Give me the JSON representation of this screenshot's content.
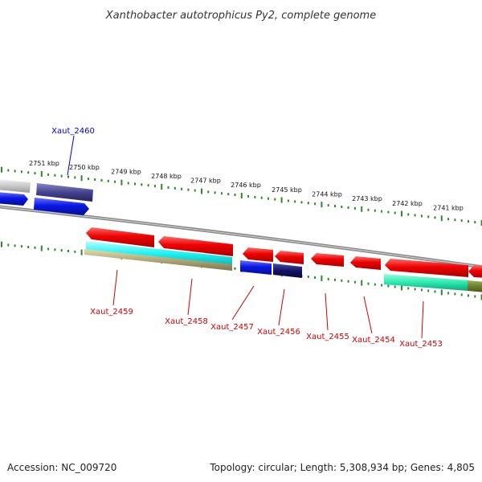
{
  "title": "Xanthobacter autotrophicus Py2, complete genome",
  "footer": {
    "accession": "Accession: NC_009720",
    "summary": "Topology: circular; Length: 5,308,934 bp; Genes: 4,805"
  },
  "ruler_labels": [
    "2751 kbp",
    "2750 kbp",
    "2749 kbp",
    "2748 kbp",
    "2747 kbp",
    "2746 kbp",
    "2745 kbp",
    "2744 kbp",
    "2743 kbp",
    "2742 kbp",
    "2741 kbp"
  ],
  "loci": {
    "top": [
      "Xaut_2460"
    ],
    "bottom": [
      "Xaut_2459",
      "Xaut_2458",
      "Xaut_2457",
      "Xaut_2456",
      "Xaut_2455",
      "Xaut_2454",
      "Xaut_2453"
    ]
  },
  "colors": {
    "forward_cds": "#0a17e6",
    "reverse_cds": "#e60a0a",
    "dark_cds": "#3c3a8a",
    "cyan_feature": "#1ff2f2",
    "olive_feature": "#b0a877",
    "green_feature": "#2aebb0",
    "tick_green": "#2a8a2a",
    "backbone": "#8f8f8f",
    "forward_label": "#0000cc",
    "reverse_label": "#cc0000"
  }
}
